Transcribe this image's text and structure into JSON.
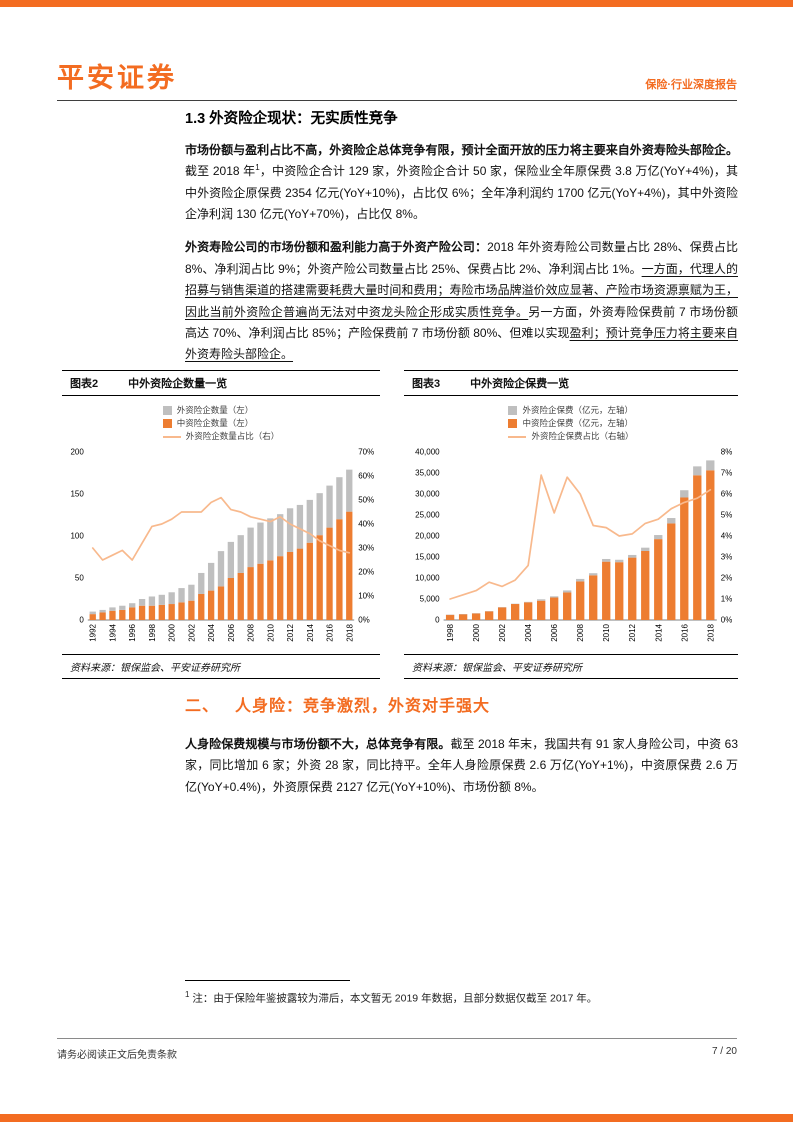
{
  "page": {
    "brand": "平安证券",
    "report_tag": "保险·行业深度报告",
    "footer_left": "请务必阅读正文后免责条款",
    "page_number": "7 / 20",
    "accent_color": "#F36C21"
  },
  "section1": {
    "title": "1.3 外资险企现状：无实质性竞争",
    "p1": {
      "bold": "市场份额与盈利占比不高，外资险企总体竞争有限，预计全面开放的压力将主要来自外资寿险头部险企。",
      "lead": "截至 2018 年",
      "sup": "1",
      "rest": "，中资险企合计 129 家，外资险企合计 50 家，保险业全年原保费 3.8 万亿(YoY+4%)，其中外资险企原保费 2354 亿元(YoY+10%)，占比仅 6%；全年净利润约 1700 亿元(YoY+4%)，其中外资险企净利润 130 亿元(YoY+70%)，占比仅 8%。"
    },
    "p2": {
      "bold": "外资寿险公司的市场份额和盈利能力高于外资产险公司：",
      "normal1": "2018 年外资寿险公司数量占比 28%、保费占比 8%、净利润占比 9%；外资产险公司数量占比 25%、保费占比 2%、净利润占比 1%。",
      "underline1": "一方面，代理人的招募与销售渠道的搭建需要耗费大量时间和费用；寿险市场品牌溢价效应显著、产险市场资源禀赋为王，因此当前外资险企普遍尚无法对中资龙头险企形成实质性竞争。",
      "normal2": "另一方面，外资寿险保费前 7 市场份额高达 70%、净利润占比 85%；产险保费前 7 市场份额 80%、但难以实现",
      "underline2": "盈利；预计竞争压力将主要来自外资寿险头部险企。"
    }
  },
  "section2": {
    "number": "二、",
    "title": "人身险：竞争激烈，外资对手强大",
    "p": {
      "bold": "人身险保费规模与市场份额不大，总体竞争有限。",
      "rest": "截至 2018 年末，我国共有 91 家人身险公司，中资 63 家，同比增加 6 家；外资 28 家，同比持平。全年人身险原保费 2.6 万亿(YoY+1%)，中资原保费 2.6 万亿(YoY+0.4%)，外资原保费 2127 亿元(YoY+10%)、市场份额 8%。"
    }
  },
  "footnote": {
    "sup": "1",
    "text": "注：由于保险年鉴披露较为滞后，本文暂无 2019 年数据，且部分数据仅截至 2017 年。"
  },
  "chart_data": [
    {
      "type": "bar",
      "figure_label": "图表2",
      "title": "中外资险企数量一览",
      "source": "资料来源：银保监会、平安证券研究所",
      "legend": [
        "外资险企数量（左）",
        "中资险企数量（左）",
        "外资险企数量占比（右）"
      ],
      "legend_position": "top-center",
      "grid": false,
      "years": [
        1992,
        1993,
        1994,
        1995,
        1996,
        1997,
        1998,
        1999,
        2000,
        2001,
        2002,
        2003,
        2004,
        2005,
        2006,
        2007,
        2008,
        2009,
        2010,
        2011,
        2012,
        2013,
        2014,
        2015,
        2016,
        2017,
        2018
      ],
      "left_axis": {
        "min": 0,
        "max": 200,
        "ticks": [
          "0",
          "50",
          "100",
          "150",
          "200"
        ]
      },
      "right_axis": {
        "min": 0,
        "max": 0.7,
        "ticks": [
          "0%",
          "10%",
          "20%",
          "30%",
          "40%",
          "50%",
          "60%",
          "70%"
        ]
      },
      "series": [
        {
          "name": "中资险企数量（左）",
          "render": "bar-stack-bottom",
          "color": "#ED7D31",
          "values": [
            7,
            9,
            11,
            12,
            15,
            17,
            17,
            18,
            19,
            21,
            23,
            31,
            35,
            40,
            50,
            56,
            63,
            67,
            71,
            76,
            81,
            85,
            92,
            101,
            110,
            120,
            129
          ]
        },
        {
          "name": "外资险企数量（左）",
          "render": "bar-stack-top",
          "color": "#BFBFBF",
          "values": [
            3,
            3,
            4,
            5,
            5,
            8,
            11,
            12,
            14,
            17,
            19,
            25,
            33,
            42,
            43,
            45,
            47,
            49,
            50,
            50,
            52,
            52,
            51,
            50,
            50,
            50,
            50
          ]
        },
        {
          "name": "外资险企数量占比（右）",
          "render": "line",
          "color": "#F8B98D",
          "values": [
            0.3,
            0.25,
            0.27,
            0.29,
            0.25,
            0.32,
            0.39,
            0.4,
            0.42,
            0.45,
            0.45,
            0.45,
            0.49,
            0.51,
            0.46,
            0.45,
            0.43,
            0.42,
            0.41,
            0.43,
            0.4,
            0.38,
            0.36,
            0.33,
            0.31,
            0.29,
            0.28
          ]
        }
      ]
    },
    {
      "type": "bar",
      "figure_label": "图表3",
      "title": "中外资险企保费一览",
      "source": "资料来源：银保监会、平安证券研究所",
      "legend": [
        "外资险企保费（亿元，左轴）",
        "中资险企保费（亿元，左轴）",
        "外资险企保费占比（右轴）"
      ],
      "legend_position": "top-center",
      "grid": false,
      "years": [
        1998,
        1999,
        2000,
        2001,
        2002,
        2003,
        2004,
        2005,
        2006,
        2007,
        2008,
        2009,
        2010,
        2011,
        2012,
        2013,
        2014,
        2015,
        2016,
        2017,
        2018
      ],
      "left_axis": {
        "min": 0,
        "max": 40000,
        "ticks": [
          "0",
          "5,000",
          "10,000",
          "15,000",
          "20,000",
          "25,000",
          "30,000",
          "35,000",
          "40,000"
        ]
      },
      "right_axis": {
        "min": 0,
        "max": 0.08,
        "ticks": [
          "0%",
          "1%",
          "2%",
          "3%",
          "4%",
          "5%",
          "6%",
          "7%",
          "8%"
        ]
      },
      "series": [
        {
          "name": "中资险企保费（亿元，左轴）",
          "render": "bar-stack-bottom",
          "color": "#ED7D31",
          "values": [
            1237,
            1383,
            1578,
            2062,
            3001,
            3806,
            4208,
            4590,
            5352,
            6561,
            9193,
            10639,
            13891,
            13766,
            14855,
            16428,
            19259,
            22993,
            29170,
            34458,
            35646
          ]
        },
        {
          "name": "外资险企保费（亿元，左轴）",
          "render": "bar-stack-top",
          "color": "#BFBFBF",
          "values": [
            13,
            17,
            22,
            38,
            49,
            74,
            112,
            340,
            288,
            479,
            587,
            501,
            639,
            574,
            635,
            792,
            971,
            1287,
            1730,
            2122,
            2354
          ]
        },
        {
          "name": "外资险企保费占比（右轴）",
          "render": "line",
          "color": "#F8B98D",
          "values": [
            0.01,
            0.012,
            0.014,
            0.018,
            0.016,
            0.019,
            0.026,
            0.069,
            0.051,
            0.068,
            0.06,
            0.045,
            0.044,
            0.04,
            0.041,
            0.046,
            0.048,
            0.053,
            0.056,
            0.058,
            0.062
          ]
        }
      ]
    }
  ]
}
